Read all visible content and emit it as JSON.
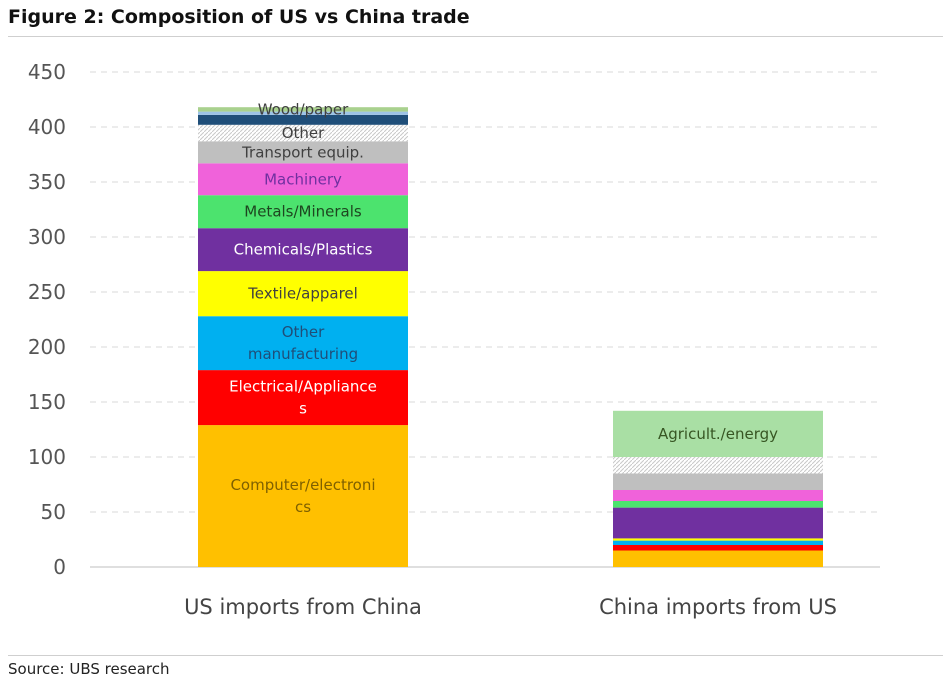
{
  "figure": {
    "title": "Figure 2: Composition of US vs China trade",
    "source": "Source: UBS research"
  },
  "chart_data": {
    "type": "bar",
    "stacked": true,
    "title": "Figure 2: Composition of US vs China trade",
    "xlabel": "",
    "ylabel": "",
    "ylim": [
      0,
      450
    ],
    "yticks": [
      0,
      50,
      100,
      150,
      200,
      250,
      300,
      350,
      400,
      450
    ],
    "grid": true,
    "legend": "none",
    "categories": [
      "US imports from China",
      "China imports from US"
    ],
    "series": [
      {
        "name": "Computer/electronics",
        "label_lines": [
          "Computer/electroni",
          "cs"
        ],
        "color": "#FFC000",
        "text_color": "#7F6000",
        "values": [
          129,
          15
        ]
      },
      {
        "name": "Electrical/Appliances",
        "label_lines": [
          "Electrical/Appliance",
          "s"
        ],
        "color": "#FF0000",
        "text_color": "#FFFFFF",
        "values": [
          50,
          5
        ]
      },
      {
        "name": "Other manufacturing",
        "label_lines": [
          "Other",
          "manufacturing"
        ],
        "color": "#00B0F0",
        "text_color": "#1F4E79",
        "values": [
          49,
          4
        ]
      },
      {
        "name": "Textile/apparel",
        "label_lines": [
          "Textile/apparel"
        ],
        "color": "#FFFF00",
        "text_color": "#404040",
        "values": [
          41,
          2
        ]
      },
      {
        "name": "Chemicals/Plastics",
        "label_lines": [
          "Chemicals/Plastics"
        ],
        "color": "#7030A0",
        "text_color": "#FFFFFF",
        "values": [
          39,
          28
        ]
      },
      {
        "name": "Metals/Minerals",
        "label_lines": [
          "Metals/Minerals"
        ],
        "color": "#4CE36E",
        "text_color": "#1E4620",
        "values": [
          30,
          6
        ]
      },
      {
        "name": "Machinery",
        "label_lines": [
          "Machinery"
        ],
        "color": "#F062DA",
        "text_color": "#7030A0",
        "values": [
          29,
          10
        ]
      },
      {
        "name": "Transport equip.",
        "label_lines": [
          "Transport equip."
        ],
        "color": "#BFBFBF",
        "text_color": "#404040",
        "values": [
          20,
          15
        ]
      },
      {
        "name": "Other",
        "label_lines": [
          "Other"
        ],
        "color": "#D9D9D9",
        "text_color": "#404040",
        "pattern": true,
        "values": [
          15,
          15
        ]
      },
      {
        "name": "",
        "label_lines": [],
        "color": "#1F4E79",
        "text_color": "#1F4E79",
        "values": [
          9,
          0
        ]
      },
      {
        "name": "",
        "label_lines": [],
        "color": "#9DC3E6",
        "text_color": "#1F4E79",
        "values": [
          3,
          0
        ]
      },
      {
        "name": "Wood/paper",
        "label_lines": [
          "Wood/paper"
        ],
        "color": "#A9D18E",
        "text_color": "#404040",
        "values": [
          4,
          0
        ]
      },
      {
        "name": "Agricult./energy",
        "label_lines": [
          "Agricult./energy"
        ],
        "color": "#A9DFA4",
        "text_color": "#375623",
        "values": [
          0,
          42
        ]
      }
    ]
  }
}
